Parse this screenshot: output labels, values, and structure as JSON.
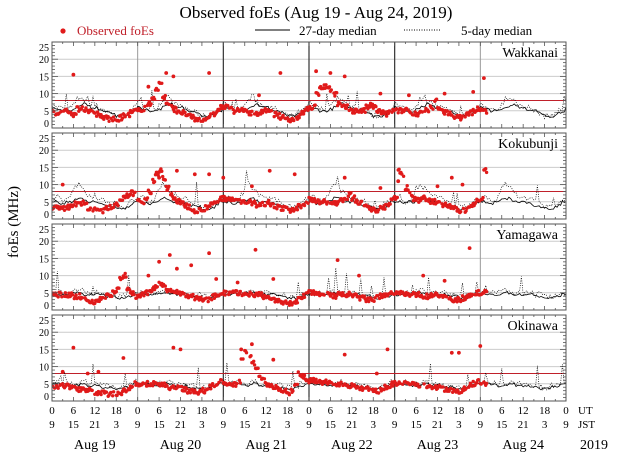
{
  "chart_data": {
    "type": "scatter",
    "title": "Observed foEs (Aug 19 - Aug 24, 2019)",
    "ylabel": "foEs (MHz)",
    "ylim": [
      0,
      25
    ],
    "yticks": [
      0,
      5,
      10,
      15,
      20,
      25
    ],
    "xlim_hours": [
      0,
      144
    ],
    "legend": {
      "placement": "top",
      "entries": [
        {
          "label": "Observed foEs",
          "style": "red-dot"
        },
        {
          "label": "27-day median",
          "style": "solid-line"
        },
        {
          "label": "5-day median",
          "style": "dotted-line"
        }
      ]
    },
    "x_ticks": {
      "ut_label": "UT",
      "jst_label": "JST",
      "ut": [
        "0",
        "6",
        "12",
        "18",
        "0",
        "6",
        "12",
        "18",
        "0",
        "6",
        "12",
        "18",
        "0",
        "6",
        "12",
        "18",
        "0",
        "6",
        "12",
        "18",
        "0",
        "6",
        "12",
        "18",
        "0"
      ],
      "jst": [
        "9",
        "15",
        "21",
        "3",
        "9",
        "15",
        "21",
        "3",
        "9",
        "15",
        "21",
        "3",
        "9",
        "15",
        "21",
        "3",
        "9",
        "15",
        "21",
        "3",
        "9",
        "15",
        "21",
        "3",
        "9"
      ]
    },
    "day_labels": [
      "Aug 19",
      "Aug 20",
      "Aug 21",
      "Aug 22",
      "Aug 23",
      "Aug 24"
    ],
    "year_label": "2019",
    "threshold_mhz": 8,
    "colors": {
      "observed": "#e01a1a",
      "threshold": "#c0202a",
      "grid": "#cccccc",
      "median": "#000000"
    },
    "observed_end_hour": 122,
    "stations": [
      {
        "name": "Wakkanai",
        "threshold_line": true,
        "median27": [
          6,
          5.5,
          5.5,
          5,
          5,
          5,
          5.5,
          6,
          6.5,
          7,
          6.5,
          6,
          6,
          5.5,
          5,
          5,
          4.5,
          4,
          3.5,
          3.5,
          3.5,
          4,
          4.5,
          5
        ],
        "median5": [
          7,
          6,
          6,
          5.5,
          5.5,
          6,
          7,
          8.5,
          9,
          8,
          7,
          6.5,
          6.5,
          6,
          5.5,
          5,
          4.5,
          4,
          3.5,
          3.5,
          4,
          4.5,
          5,
          6
        ],
        "observed_daily": [
          [
            4.5,
            4,
            4.5,
            5,
            5,
            4.5,
            4,
            5.5,
            6,
            5.5,
            5,
            4.5,
            4,
            3.5,
            3,
            3,
            2.5,
            2.5,
            2.5,
            3,
            3.5,
            4,
            4.5,
            5
          ],
          [
            5,
            5.5,
            6,
            7,
            9,
            11,
            13,
            9,
            7,
            6,
            5.5,
            5,
            4.5,
            4,
            3.5,
            3,
            2.5,
            2.5,
            2.5,
            3,
            3.5,
            4,
            5,
            6
          ],
          [
            6,
            6,
            5.5,
            5,
            5,
            5,
            5,
            4.5,
            4.5,
            4,
            4.5,
            5,
            5,
            4.5,
            4,
            3.5,
            3,
            3,
            2.5,
            2.5,
            3,
            3.5,
            4.5,
            5.5
          ],
          [
            6,
            6,
            10,
            12,
            12,
            12,
            11,
            10,
            7,
            6,
            6,
            5.5,
            5,
            5,
            5,
            5,
            6,
            6.5,
            6,
            5,
            4.5,
            4,
            4.5,
            5
          ],
          [
            5,
            5,
            5,
            5.5,
            5,
            4.5,
            4,
            4.5,
            5,
            5,
            6,
            8,
            6,
            5,
            4.5,
            4,
            3.5,
            3,
            3,
            3.5,
            4,
            4.5,
            5,
            5.5
          ]
        ],
        "observed_outliers": [
          [
            6,
            15.5
          ],
          [
            27,
            12
          ],
          [
            32,
            16
          ],
          [
            34,
            15
          ],
          [
            44,
            16
          ],
          [
            58,
            9.5
          ],
          [
            64,
            16
          ],
          [
            74,
            16.5
          ],
          [
            78,
            16
          ],
          [
            82,
            15
          ],
          [
            92,
            10
          ],
          [
            100,
            9.5
          ],
          [
            110,
            10
          ],
          [
            118,
            10.5
          ],
          [
            121,
            14.5
          ]
        ]
      },
      {
        "name": "Kokubunji",
        "threshold_line": true,
        "median27": [
          5,
          5,
          4.5,
          4.5,
          5,
          5,
          5.5,
          6,
          6,
          5.5,
          5,
          5,
          5,
          4.5,
          4.5,
          4,
          4,
          3.5,
          3,
          3,
          3,
          3.5,
          4,
          5
        ],
        "median5": [
          6,
          6.5,
          6,
          5,
          5.5,
          7,
          9,
          10,
          9,
          8,
          7,
          6.5,
          6,
          6,
          5.5,
          5,
          4.5,
          4,
          3.5,
          3.5,
          3.5,
          4,
          5,
          6
        ],
        "observed_daily": [
          [
            3.5,
            3.5,
            3,
            3,
            3.5,
            4,
            4.5,
            5,
            4.5,
            4,
            3,
            2.5,
            2.5,
            2.5,
            2.5,
            3,
            3.5,
            4,
            4.5,
            5,
            6,
            7,
            7.5,
            8
          ],
          [
            5,
            5,
            6,
            8,
            11,
            13,
            14,
            12,
            9,
            7,
            6,
            5,
            4.5,
            4,
            3.5,
            3,
            2.5,
            2.5,
            3,
            3.5,
            4,
            4.5,
            5,
            6
          ],
          [
            6,
            6,
            6,
            5.5,
            5.5,
            5,
            5,
            5,
            4.5,
            4,
            4,
            4.5,
            5,
            4.5,
            4,
            3.5,
            3,
            3,
            2.5,
            2.5,
            3,
            3.5,
            4,
            5
          ],
          [
            6,
            5.5,
            5,
            5,
            5,
            5,
            4.5,
            4.5,
            5,
            5.5,
            6,
            7,
            6,
            5,
            4.5,
            4,
            3.5,
            3,
            2.5,
            2.5,
            3,
            3.5,
            4,
            5.5
          ],
          [
            6,
            14,
            13,
            9,
            7,
            6,
            5.5,
            6,
            6,
            5.5,
            5,
            5,
            4.5,
            4,
            4,
            3.5,
            3,
            3,
            2.5,
            2.5,
            3,
            3.5,
            4.5,
            5.5
          ]
        ],
        "observed_outliers": [
          [
            3,
            10
          ],
          [
            30,
            12
          ],
          [
            35,
            14
          ],
          [
            40,
            13
          ],
          [
            44,
            13
          ],
          [
            48,
            12
          ],
          [
            56,
            9.5
          ],
          [
            61,
            14
          ],
          [
            68,
            13
          ],
          [
            82,
            12
          ],
          [
            92,
            9
          ],
          [
            97,
            11
          ],
          [
            108,
            9.5
          ],
          [
            112,
            12
          ],
          [
            115,
            10
          ]
        ]
      },
      {
        "name": "Yamagawa",
        "threshold_line": false,
        "median27": [
          4.5,
          4.5,
          4.5,
          4.5,
          4.5,
          4.5,
          5,
          5,
          5,
          4.5,
          4.5,
          4.5,
          4.5,
          4.5,
          4.5,
          4,
          4,
          4,
          3.5,
          3.5,
          3.5,
          4,
          4,
          4.5
        ],
        "median5": [
          5,
          5,
          5,
          5,
          5,
          5,
          5.5,
          5.5,
          5.5,
          5,
          5,
          5,
          5,
          5,
          5,
          4.5,
          4.5,
          4.5,
          4,
          4,
          4,
          4.5,
          4.5,
          5
        ],
        "observed_daily": [
          [
            4.5,
            4.5,
            4.5,
            4.5,
            4.5,
            4.5,
            4,
            4,
            3.5,
            3,
            2.5,
            2.5,
            2.5,
            3,
            3.5,
            4,
            4.5,
            5,
            6,
            9,
            10,
            6,
            5,
            4
          ],
          [
            4.5,
            4.5,
            5,
            5.5,
            6,
            7,
            8,
            7,
            6,
            5.5,
            5,
            5,
            4.5,
            4.5,
            4,
            4,
            3.5,
            3,
            3,
            3,
            3.5,
            4,
            4.5,
            5
          ],
          [
            5,
            5,
            5,
            5,
            5,
            4.5,
            4.5,
            4.5,
            4.5,
            4.5,
            4.5,
            4,
            4,
            3.5,
            3,
            2.5,
            2,
            2,
            2,
            2,
            2.5,
            3,
            4,
            5
          ],
          [
            5,
            5,
            4.5,
            4.5,
            4.5,
            4.5,
            4,
            4,
            4.5,
            4.5,
            4.5,
            4.5,
            4,
            4,
            3.5,
            3.5,
            3,
            3,
            3,
            3.5,
            4,
            4.5,
            4.5,
            5
          ],
          [
            5,
            5,
            4.5,
            4.5,
            4.5,
            4.5,
            4.5,
            4,
            4,
            4,
            4.5,
            4.5,
            4.5,
            4,
            3.5,
            3.5,
            3,
            3,
            3,
            3.5,
            4,
            4.5,
            5,
            5
          ]
        ],
        "observed_outliers": [
          [
            27,
            10
          ],
          [
            30,
            14
          ],
          [
            33,
            16
          ],
          [
            35,
            12
          ],
          [
            39,
            13
          ],
          [
            44,
            16.5
          ],
          [
            46,
            9
          ],
          [
            52,
            8
          ],
          [
            57,
            17.5
          ],
          [
            62,
            9
          ],
          [
            80,
            14.5
          ],
          [
            86,
            10
          ],
          [
            104,
            10
          ],
          [
            110,
            8.5
          ],
          [
            117,
            18
          ]
        ]
      },
      {
        "name": "Okinawa",
        "threshold_line": true,
        "median27": [
          5,
          5,
          5,
          5,
          5,
          4.5,
          4.5,
          4.5,
          5,
          5,
          4.5,
          4.5,
          4.5,
          4.5,
          4,
          4,
          4,
          3.5,
          3.5,
          3.5,
          4,
          4,
          4.5,
          5
        ],
        "median5": [
          5.5,
          5.5,
          5.5,
          5.5,
          5.5,
          5,
          5,
          5,
          5.5,
          5.5,
          5,
          5,
          5,
          5,
          4.5,
          4.5,
          4.5,
          4,
          4,
          4,
          4.5,
          4.5,
          5,
          5.5
        ],
        "observed_daily": [
          [
            4,
            4,
            4.5,
            4.5,
            4.5,
            4,
            4,
            3.5,
            3.5,
            3,
            3,
            3,
            2.5,
            2.5,
            2.5,
            2,
            2,
            2,
            2,
            2.5,
            3,
            3.5,
            4,
            5
          ],
          [
            5,
            5,
            5,
            5,
            5,
            5,
            4.5,
            4.5,
            4,
            4,
            4,
            4,
            3.5,
            3.5,
            3,
            3,
            2.5,
            2.5,
            3,
            3.5,
            4,
            4.5,
            5,
            5.5
          ],
          [
            5,
            5,
            5,
            5,
            5.5,
            12,
            14,
            13,
            11,
            9,
            7,
            6,
            5,
            4.5,
            4,
            3.5,
            3,
            3,
            2.5,
            3,
            5,
            8,
            7,
            6
          ],
          [
            6,
            6,
            6,
            5.5,
            5.5,
            5.5,
            5,
            5,
            5,
            5,
            4.5,
            4.5,
            4.5,
            4,
            4,
            3.5,
            3.5,
            3,
            3,
            3,
            3.5,
            4,
            4.5,
            5
          ],
          [
            5,
            5,
            5,
            5,
            5,
            5,
            4.5,
            4.5,
            4.5,
            4.5,
            4,
            4,
            4,
            3.5,
            3.5,
            3,
            3,
            3,
            3,
            3.5,
            4,
            4.5,
            5,
            5.5
          ]
        ],
        "observed_outliers": [
          [
            3,
            8.5
          ],
          [
            6,
            15.5
          ],
          [
            10,
            8
          ],
          [
            13,
            8.5
          ],
          [
            20,
            12.5
          ],
          [
            34,
            15.5
          ],
          [
            36,
            15
          ],
          [
            53,
            15
          ],
          [
            56,
            16.5
          ],
          [
            62,
            12
          ],
          [
            82,
            13.5
          ],
          [
            91,
            8
          ],
          [
            94,
            15
          ],
          [
            112,
            14
          ],
          [
            114,
            14
          ],
          [
            120,
            16
          ]
        ]
      }
    ]
  }
}
